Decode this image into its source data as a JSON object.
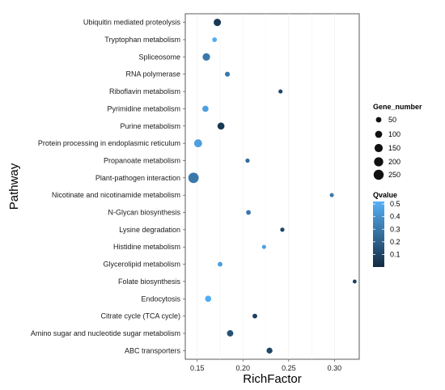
{
  "chart_data": {
    "type": "scatter",
    "xlabel": "RichFactor",
    "ylabel": "Pathway",
    "xlim": [
      0.137,
      0.327
    ],
    "x_ticks": [
      "0.15",
      "0.20",
      "0.25",
      "0.30"
    ],
    "x_tick_values": [
      0.15,
      0.2,
      0.25,
      0.3
    ],
    "grid": true,
    "legend_position": "right",
    "size_legend": {
      "title": "Gene_number",
      "values": [
        50,
        100,
        150,
        200,
        250
      ],
      "labels": [
        "50",
        "100",
        "150",
        "200",
        "250"
      ]
    },
    "color_legend": {
      "title": "Qvalue",
      "range": [
        0.0,
        0.52
      ],
      "labels": [
        "0.5",
        "0.4",
        "0.3",
        "0.2",
        "0.1"
      ],
      "label_values": [
        0.5,
        0.4,
        0.3,
        0.2,
        0.1
      ],
      "low_color": "#132B43",
      "high_color": "#56B1F7"
    },
    "points": [
      {
        "pathway": "Ubiquitin mediated proteolysis",
        "x": 0.172,
        "gene_number": 110,
        "qvalue": 0.05
      },
      {
        "pathway": "Tryptophan metabolism",
        "x": 0.169,
        "gene_number": 30,
        "qvalue": 0.5
      },
      {
        "pathway": "Spliceosome",
        "x": 0.16,
        "gene_number": 120,
        "qvalue": 0.3
      },
      {
        "pathway": "RNA polymerase",
        "x": 0.183,
        "gene_number": 35,
        "qvalue": 0.3
      },
      {
        "pathway": "Riboflavin metabolism",
        "x": 0.241,
        "gene_number": 18,
        "qvalue": 0.1
      },
      {
        "pathway": "Pyrimidine metabolism",
        "x": 0.159,
        "gene_number": 70,
        "qvalue": 0.45
      },
      {
        "pathway": "Purine metabolism",
        "x": 0.176,
        "gene_number": 100,
        "qvalue": 0.05
      },
      {
        "pathway": "Protein processing in endoplasmic reticulum",
        "x": 0.151,
        "gene_number": 140,
        "qvalue": 0.45
      },
      {
        "pathway": "Propanoate metabolism",
        "x": 0.205,
        "gene_number": 20,
        "qvalue": 0.25
      },
      {
        "pathway": "Plant-pathogen interaction",
        "x": 0.146,
        "gene_number": 270,
        "qvalue": 0.3
      },
      {
        "pathway": "Nicotinate and nicotinamide metabolism",
        "x": 0.297,
        "gene_number": 18,
        "qvalue": 0.3
      },
      {
        "pathway": "N-Glycan biosynthesis",
        "x": 0.206,
        "gene_number": 30,
        "qvalue": 0.3
      },
      {
        "pathway": "Lysine degradation",
        "x": 0.243,
        "gene_number": 20,
        "qvalue": 0.1
      },
      {
        "pathway": "Histidine metabolism",
        "x": 0.223,
        "gene_number": 18,
        "qvalue": 0.45
      },
      {
        "pathway": "Glycerolipid metabolism",
        "x": 0.175,
        "gene_number": 30,
        "qvalue": 0.45
      },
      {
        "pathway": "Folate biosynthesis",
        "x": 0.322,
        "gene_number": 15,
        "qvalue": 0.08
      },
      {
        "pathway": "Endocytosis",
        "x": 0.162,
        "gene_number": 70,
        "qvalue": 0.5
      },
      {
        "pathway": "Citrate cycle (TCA cycle)",
        "x": 0.213,
        "gene_number": 30,
        "qvalue": 0.08
      },
      {
        "pathway": "Amino sugar and nucleotide sugar metabolism",
        "x": 0.186,
        "gene_number": 75,
        "qvalue": 0.15
      },
      {
        "pathway": "ABC transporters",
        "x": 0.229,
        "gene_number": 60,
        "qvalue": 0.1
      }
    ]
  }
}
